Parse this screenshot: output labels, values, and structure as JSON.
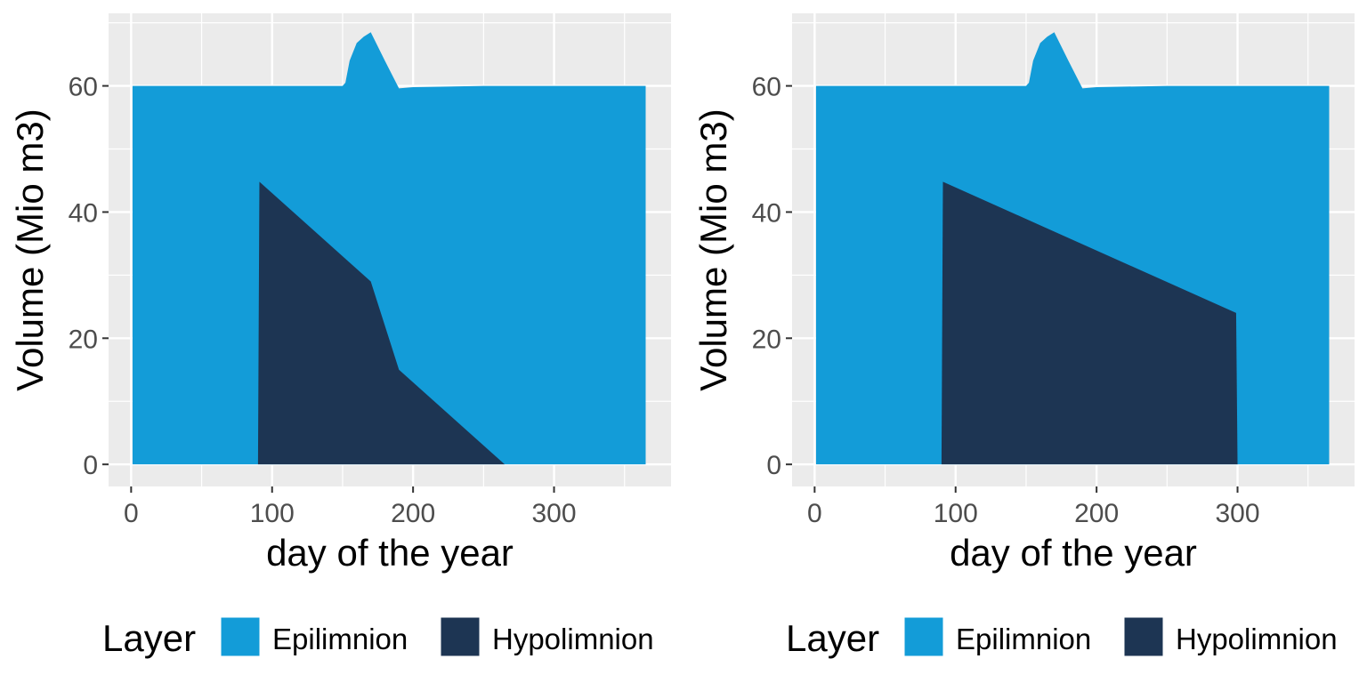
{
  "chart_data": [
    {
      "type": "area",
      "xlabel": "day of the year",
      "ylabel": "Volume (Mio m3)",
      "xlim": [
        -16,
        383
      ],
      "ylim": [
        -3.5,
        71.5
      ],
      "xticks": [
        0,
        100,
        200,
        300
      ],
      "xtick_labels": [
        "0",
        "100",
        "200",
        "300"
      ],
      "yticks": [
        0,
        20,
        40,
        60
      ],
      "ytick_labels": [
        "0",
        "20",
        "40",
        "60"
      ],
      "grid": true,
      "legend": {
        "title": "Layer",
        "position": "bottom",
        "entries": [
          "Epilimnion",
          "Hypolimnion"
        ]
      },
      "colors": {
        "Epilimnion": "#139cd8",
        "Hypolimnion": "#1d3553"
      },
      "series": [
        {
          "name": "Epilimnion",
          "x": [
            1,
            150,
            152,
            155,
            160,
            165,
            170,
            180,
            190,
            200,
            250,
            365
          ],
          "y": [
            60,
            60,
            60.5,
            64,
            66.8,
            67.8,
            68.5,
            64,
            59.6,
            59.8,
            60,
            60
          ]
        },
        {
          "name": "Hypolimnion",
          "x": [
            90,
            91,
            170,
            190,
            265
          ],
          "y": [
            0,
            44.8,
            29,
            15,
            0
          ]
        }
      ]
    },
    {
      "type": "area",
      "xlabel": "day of the year",
      "ylabel": "Volume (Mio m3)",
      "xlim": [
        -16,
        383
      ],
      "ylim": [
        -3.5,
        71.5
      ],
      "xticks": [
        0,
        100,
        200,
        300
      ],
      "xtick_labels": [
        "0",
        "100",
        "200",
        "300"
      ],
      "yticks": [
        0,
        20,
        40,
        60
      ],
      "ytick_labels": [
        "0",
        "20",
        "40",
        "60"
      ],
      "grid": true,
      "legend": {
        "title": "Layer",
        "position": "bottom",
        "entries": [
          "Epilimnion",
          "Hypolimnion"
        ]
      },
      "colors": {
        "Epilimnion": "#139cd8",
        "Hypolimnion": "#1d3553"
      },
      "series": [
        {
          "name": "Epilimnion",
          "x": [
            1,
            150,
            152,
            155,
            160,
            165,
            170,
            180,
            190,
            200,
            250,
            365
          ],
          "y": [
            60,
            60,
            60.5,
            64,
            66.8,
            67.8,
            68.5,
            64,
            59.6,
            59.8,
            60,
            60
          ]
        },
        {
          "name": "Hypolimnion",
          "x": [
            90,
            91,
            299,
            300
          ],
          "y": [
            0,
            44.8,
            24,
            0
          ]
        }
      ]
    }
  ]
}
